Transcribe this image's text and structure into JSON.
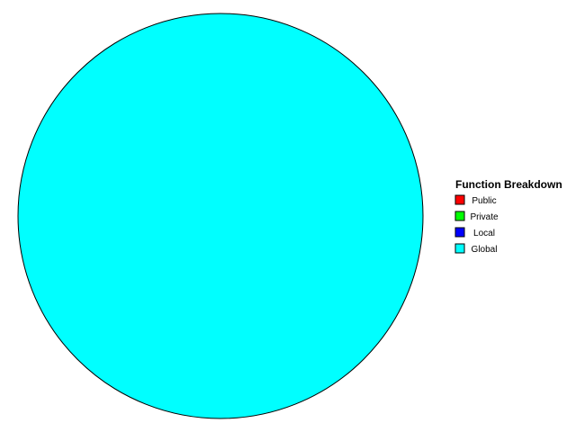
{
  "chart_data": {
    "type": "pie",
    "legend_title": "Function Breakdown",
    "legend_position": "right",
    "categories": [
      "Public",
      "Private",
      "Local",
      "Global"
    ],
    "values": [
      0,
      0,
      0,
      100
    ],
    "colors": [
      "#ff0000",
      "#00ff00",
      "#0000ff",
      "#00ffff"
    ]
  }
}
